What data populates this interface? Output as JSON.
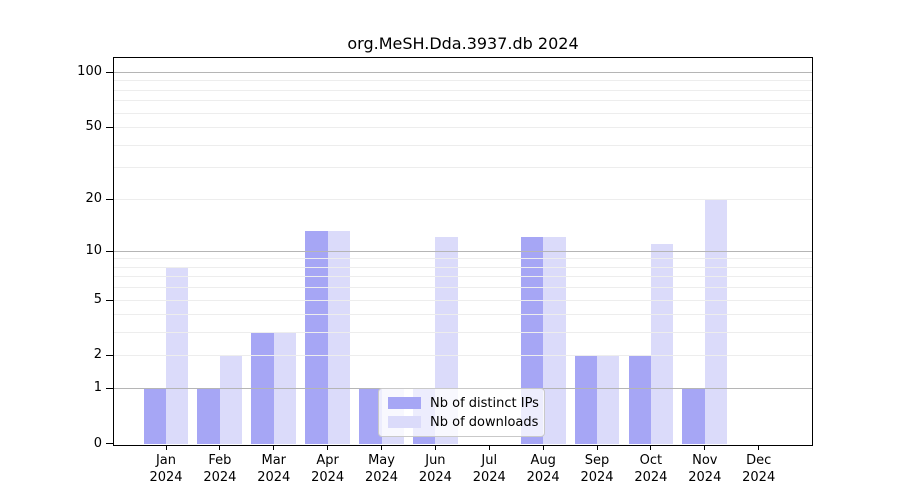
{
  "chart_data": {
    "type": "bar",
    "title": "org.MeSH.Dda.3937.db 2024",
    "scale": "log1p (y position proportional to log10(1+value), 0 at baseline)",
    "grid": true,
    "legend_position": "inside plot, lower center-left",
    "categories": [
      "Jan",
      "Feb",
      "Mar",
      "Apr",
      "May",
      "Jun",
      "Jul",
      "Aug",
      "Sep",
      "Oct",
      "Nov",
      "Dec"
    ],
    "year_label": "2024",
    "series": [
      {
        "name": "Nb of distinct IPs",
        "color": "#a6a6f5",
        "values": [
          1,
          1,
          3,
          13,
          1,
          1,
          0,
          12,
          2,
          2,
          1,
          0
        ]
      },
      {
        "name": "Nb of downloads",
        "color": "#dbdbfa",
        "values": [
          8,
          2,
          3,
          13,
          1,
          12,
          0,
          12,
          2,
          11,
          20,
          0
        ]
      }
    ],
    "y_axis": {
      "tick_values": [
        100,
        50,
        20,
        10,
        5,
        2,
        1,
        0
      ],
      "tick_labels": [
        "100",
        "50",
        "20",
        "10",
        "5",
        "2",
        "1",
        "0"
      ],
      "major_gridlines": [
        1,
        10,
        100
      ],
      "minor_gridlines": [
        2,
        3,
        4,
        5,
        6,
        7,
        8,
        9,
        20,
        30,
        40,
        50,
        60,
        70,
        80,
        90
      ],
      "range": [
        0,
        118
      ]
    },
    "colors": {
      "distinct_ips_bar": "#a6a6f5",
      "downloads_bar": "#dbdbfa",
      "major_grid": "#b5b5b5",
      "minor_grid": "#ededed",
      "axis_spine": "#000000",
      "background": "#ffffff"
    }
  }
}
